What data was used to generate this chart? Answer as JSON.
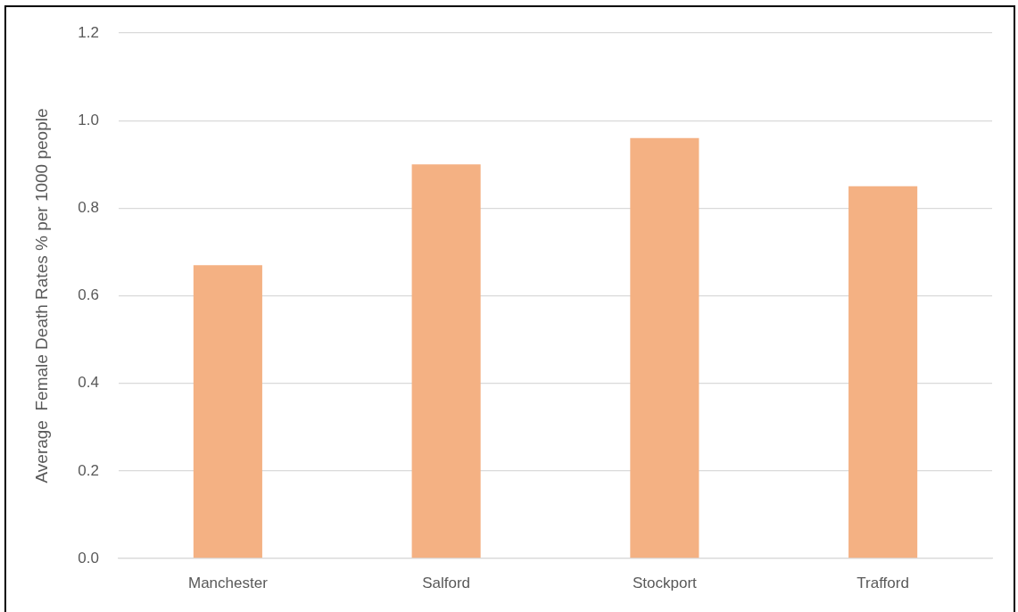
{
  "chart_data": {
    "type": "bar",
    "categories": [
      "Manchester",
      "Salford",
      "Stockport",
      "Trafford"
    ],
    "values": [
      0.67,
      0.9,
      0.96,
      0.85
    ],
    "color": "#f4b183",
    "ylabel": "Average  Female Death Rates % per 1000 people",
    "ylim": [
      0,
      1.2
    ],
    "yticks": [
      {
        "value": 0,
        "label": "0.0"
      },
      0.2,
      0.4,
      0.6,
      0.8,
      {
        "value": 1,
        "label": "1.0"
      },
      1.2
    ],
    "grid": "y"
  }
}
